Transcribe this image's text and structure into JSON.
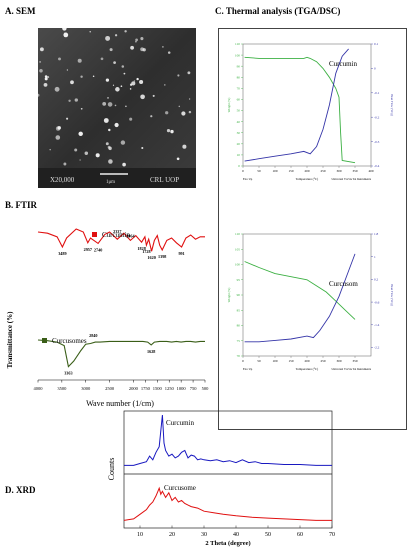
{
  "panels": {
    "sem": {
      "title": "A. SEM",
      "info_bar": {
        "magnification": "X20,000",
        "scale": "1μm",
        "lab": "CRL UOP"
      }
    },
    "ftir": {
      "title": "B. FTIR",
      "ylabel": "Transmittance (%)",
      "xlabel": "Wave number (1/cm)",
      "xticks": [
        4000,
        3500,
        3000,
        2500,
        2000,
        1750,
        1500,
        1250,
        1000,
        750,
        500
      ]
    },
    "thermal": {
      "title": "C. Thermal analysis (TGA/DSC)"
    },
    "xrd": {
      "title": "D. XRD"
    }
  },
  "chart_data": [
    {
      "type": "line",
      "id": "ftir",
      "xlabel": "Wave number (1/cm)",
      "ylabel": "Transmittance (%)",
      "xlim": [
        4000,
        500
      ],
      "series": [
        {
          "name": "Curcumin",
          "color": "#e01010",
          "x": [
            4000,
            3800,
            3600,
            3489,
            3400,
            3200,
            3050,
            2957,
            2900,
            2740,
            2600,
            2500,
            2337,
            2200,
            2064,
            1950,
            1828,
            1760,
            1728,
            1680,
            1620,
            1560,
            1500,
            1450,
            1398,
            1300,
            1200,
            1100,
            991,
            900,
            800,
            700,
            600,
            500
          ],
          "y": [
            80,
            78,
            72,
            55,
            70,
            85,
            80,
            62,
            70,
            61,
            76,
            80,
            68,
            78,
            66,
            74,
            63,
            72,
            58,
            68,
            48,
            66,
            74,
            58,
            50,
            66,
            70,
            62,
            55,
            70,
            75,
            68,
            72,
            72
          ]
        },
        {
          "name": "Curcusomes",
          "color": "#3a5e18",
          "x": [
            4000,
            3800,
            3600,
            3450,
            3363,
            3250,
            3100,
            3000,
            2900,
            2800,
            2700,
            2500,
            2300,
            2100,
            1900,
            1800,
            1700,
            1628,
            1560,
            1450,
            1300,
            1200,
            1100,
            1000,
            900,
            800,
            700,
            600,
            500
          ],
          "y": [
            50,
            49,
            47,
            42,
            12,
            20,
            35,
            44,
            45,
            47,
            47,
            48,
            48,
            48,
            48,
            48,
            47,
            43,
            47,
            48,
            48,
            47,
            48,
            47,
            48,
            48,
            47,
            48,
            48
          ]
        }
      ],
      "annotations": [
        "3489",
        "2957",
        "2740",
        "2337",
        "2064",
        "1828",
        "1728",
        "1620",
        "1398",
        "991",
        "3363",
        "2840",
        "1628"
      ]
    },
    {
      "type": "line",
      "id": "tga_curcumin",
      "title": "Curcumin",
      "xlabel": "Temperature (°C)",
      "ylabel": "Weight (%)",
      "y2label": "Heat Flow (W/g)",
      "xlim": [
        0,
        400
      ],
      "ylim": [
        0,
        110
      ],
      "y2lim": [
        -0.4,
        0.1
      ],
      "yticks": [
        0,
        10,
        20,
        30,
        40,
        50,
        60,
        70,
        80,
        90,
        100,
        110
      ],
      "y2ticks": [
        0.1,
        0,
        -0.1,
        -0.2,
        -0.3,
        -0.4
      ],
      "xticks": [
        0,
        50,
        100,
        150,
        200,
        250,
        300,
        350,
        400
      ],
      "footer_left": "Exo Up",
      "footer_right": "Universal V4.5A TA Instruments",
      "series": [
        {
          "name": "Weight",
          "color": "#3cb043",
          "x": [
            5,
            50,
            100,
            150,
            190,
            200,
            210,
            230,
            250,
            270,
            290,
            300,
            305,
            310,
            350
          ],
          "y": [
            98,
            97,
            97,
            97,
            97,
            98,
            97,
            94,
            88,
            80,
            70,
            62,
            30,
            5,
            3
          ]
        },
        {
          "name": "Heat Flow",
          "color": "#3535a8",
          "x": [
            5,
            50,
            100,
            150,
            190,
            210,
            230,
            250,
            270,
            290,
            310,
            330
          ],
          "y": [
            -0.38,
            -0.37,
            -0.36,
            -0.35,
            -0.34,
            -0.35,
            -0.32,
            -0.25,
            -0.15,
            -0.02,
            0.05,
            0.08
          ]
        }
      ]
    },
    {
      "type": "line",
      "id": "tga_curcusome",
      "title": "Curcusom",
      "xlabel": "Temperature (°C)",
      "ylabel": "Weight (%)",
      "y2label": "Heat Flow (W/g)",
      "xlim": [
        0,
        400
      ],
      "ylim": [
        70,
        110
      ],
      "y2lim": [
        -2.5,
        1.8
      ],
      "yticks": [
        70,
        75,
        80,
        85,
        90,
        95,
        100,
        105,
        110
      ],
      "y2ticks": [
        1.8,
        1.0,
        0.2,
        -0.6,
        -1.4,
        -2.2
      ],
      "xticks": [
        0,
        50,
        100,
        150,
        200,
        250,
        300,
        350
      ],
      "footer_left": "Exo Up",
      "footer_right": "Universal V4.5A TA Instruments",
      "series": [
        {
          "name": "Weight",
          "color": "#3cb043",
          "x": [
            5,
            50,
            100,
            150,
            200,
            230,
            260,
            290,
            320,
            350
          ],
          "y": [
            101,
            99,
            97,
            96,
            95,
            93,
            91,
            88,
            85,
            82
          ]
        },
        {
          "name": "Heat Flow",
          "color": "#3535a8",
          "x": [
            5,
            50,
            100,
            150,
            200,
            220,
            240,
            270,
            300,
            330,
            350
          ],
          "y": [
            -2.0,
            -2.0,
            -1.95,
            -1.9,
            -1.8,
            -1.85,
            -1.6,
            -1.1,
            -0.4,
            0.5,
            1.1
          ]
        }
      ]
    },
    {
      "type": "line",
      "id": "xrd",
      "xlabel": "2 Theta (degree)",
      "ylabel": "Counts",
      "xlim": [
        5,
        70
      ],
      "xticks": [
        10,
        20,
        30,
        40,
        50,
        60,
        70
      ],
      "series": [
        {
          "name": "Curcumin",
          "color": "#1818c0",
          "x": [
            5,
            8,
            10,
            12,
            13,
            14,
            15,
            16,
            17,
            17.5,
            18,
            19,
            20,
            21,
            22,
            23,
            24,
            25,
            26,
            27,
            28,
            29,
            30,
            32,
            34,
            36,
            38,
            40,
            42,
            44,
            46,
            48,
            50,
            55,
            60,
            65,
            70
          ],
          "y": [
            6,
            6,
            8,
            10,
            16,
            12,
            20,
            26,
            60,
            30,
            22,
            16,
            18,
            14,
            16,
            20,
            22,
            14,
            17,
            16,
            12,
            13,
            12,
            11,
            12,
            10,
            11,
            9,
            12,
            9,
            10,
            8,
            8,
            7,
            7,
            6,
            6
          ]
        },
        {
          "name": "Curcusome",
          "color": "#e01010",
          "x": [
            5,
            8,
            10,
            12,
            13,
            14,
            15,
            16,
            16.5,
            17,
            18,
            19,
            20,
            21,
            22,
            23,
            24,
            25,
            26,
            28,
            30,
            33,
            36,
            40,
            45,
            50,
            55,
            60,
            65,
            70
          ],
          "y": [
            6,
            8,
            14,
            20,
            26,
            30,
            38,
            48,
            40,
            44,
            36,
            42,
            32,
            36,
            30,
            32,
            28,
            26,
            24,
            22,
            18,
            16,
            14,
            12,
            10,
            9,
            8,
            7,
            6,
            6
          ]
        }
      ]
    }
  ]
}
